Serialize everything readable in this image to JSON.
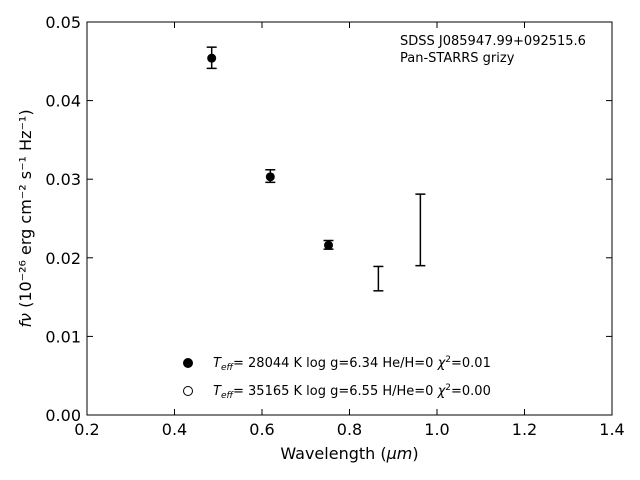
{
  "chart_data": {
    "type": "scatter",
    "xlabel": {
      "pre": "Wavelength (",
      "italic": "μm",
      "post": ")"
    },
    "ylabel": {
      "italic": "fν",
      "rest": " (10⁻²⁶ erg cm⁻² s⁻¹ Hz⁻¹)"
    },
    "xlim": [
      0.2,
      1.4
    ],
    "ylim": [
      0.0,
      0.05
    ],
    "xticks": [
      "0.2",
      "0.4",
      "0.6",
      "0.8",
      "1.0",
      "1.2",
      "1.4"
    ],
    "yticks": [
      "0.00",
      "0.01",
      "0.02",
      "0.03",
      "0.04",
      "0.05"
    ],
    "annotation": [
      "SDSS J085947.99+092515.6",
      "Pan-STARRS grizy"
    ],
    "observed": [
      {
        "x": 0.485,
        "y": 0.0454,
        "err_low": 0.0441,
        "err_high": 0.0468,
        "marker": true
      },
      {
        "x": 0.619,
        "y": 0.0303,
        "err_low": 0.0296,
        "err_high": 0.0312,
        "marker": true
      },
      {
        "x": 0.752,
        "y": 0.0216,
        "err_low": 0.0211,
        "err_high": 0.0222,
        "marker": true
      },
      {
        "x": 0.866,
        "y": 0.0174,
        "err_low": 0.0158,
        "err_high": 0.0189,
        "marker": false
      },
      {
        "x": 0.962,
        "y": 0.0235,
        "err_low": 0.019,
        "err_high": 0.0281,
        "marker": false
      }
    ],
    "legend": [
      {
        "marker": "filled-circle",
        "teff": "= 28044 K  log g=6.34  He/H=0  ",
        "chi": "=0.01"
      },
      {
        "marker": "open-circle",
        "teff": "= 35165 K  log g=6.55  H/He=0  ",
        "chi": "=0.00"
      }
    ],
    "legend_position": "lower-center",
    "grid": false,
    "colors": {
      "marker": "#000000",
      "axis": "#000000",
      "background": "#ffffff"
    }
  }
}
